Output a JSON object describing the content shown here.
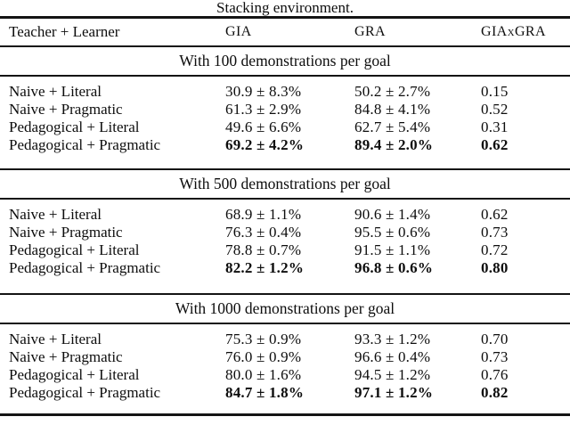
{
  "title": "Stacking environment.",
  "columns": {
    "teacher_learner": "Teacher + Learner",
    "gia": "GIA",
    "gra": "GRA",
    "giaxgra": "GIAxGRA"
  },
  "sections": [
    {
      "header": "With 100 demonstrations per goal",
      "rows": [
        {
          "label": "Naive + Literal",
          "gia": "30.9 ± 8.3%",
          "gra": "50.2 ± 2.7%",
          "giaxgra": "0.15"
        },
        {
          "label": "Naive + Pragmatic",
          "gia": "61.3 ± 2.9%",
          "gra": "84.8 ± 4.1%",
          "giaxgra": "0.52"
        },
        {
          "label": "Pedagogical + Literal",
          "gia": "49.6 ± 6.6%",
          "gra": "62.7 ± 5.4%",
          "giaxgra": "0.31"
        },
        {
          "label": "Pedagogical + Pragmatic",
          "gia": "69.2 ± 4.2%",
          "gra": "89.4 ± 2.0%",
          "giaxgra": "0.62",
          "bold": true
        }
      ]
    },
    {
      "header": "With 500 demonstrations per goal",
      "rows": [
        {
          "label": "Naive + Literal",
          "gia": "68.9 ± 1.1%",
          "gra": "90.6 ± 1.4%",
          "giaxgra": "0.62"
        },
        {
          "label": "Naive + Pragmatic",
          "gia": "76.3 ± 0.4%",
          "gra": "95.5 ± 0.6%",
          "giaxgra": "0.73"
        },
        {
          "label": "Pedagogical + Literal",
          "gia": "78.8 ± 0.7%",
          "gra": "91.5 ± 1.1%",
          "giaxgra": "0.72"
        },
        {
          "label": "Pedagogical + Pragmatic",
          "gia": "82.2 ± 1.2%",
          "gra": "96.8 ± 0.6%",
          "giaxgra": "0.80",
          "bold": true
        }
      ]
    },
    {
      "header": "With 1000 demonstrations per goal",
      "rows": [
        {
          "label": "Naive + Literal",
          "gia": "75.3 ± 0.9%",
          "gra": "93.3 ± 1.2%",
          "giaxgra": "0.70"
        },
        {
          "label": "Naive + Pragmatic",
          "gia": "76.0 ± 0.9%",
          "gra": "96.6 ± 0.4%",
          "giaxgra": "0.73"
        },
        {
          "label": "Pedagogical + Literal",
          "gia": "80.0 ± 1.6%",
          "gra": "94.5 ± 1.2%",
          "giaxgra": "0.76"
        },
        {
          "label": "Pedagogical + Pragmatic",
          "gia": "84.7 ± 1.8%",
          "gra": "97.1 ± 1.2%",
          "giaxgra": "0.82",
          "bold": true
        }
      ]
    }
  ]
}
